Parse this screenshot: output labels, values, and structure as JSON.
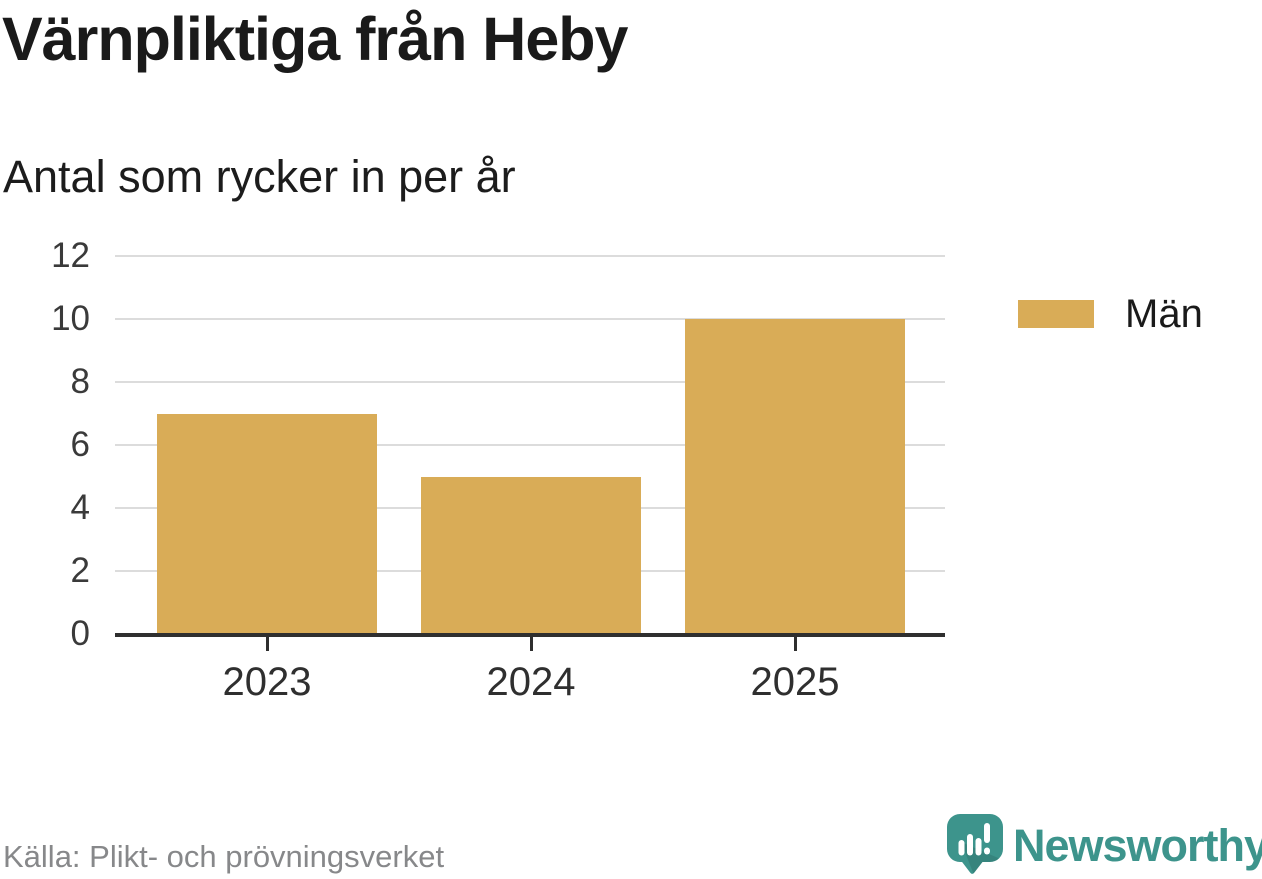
{
  "header": {
    "title": "Värnpliktiga från Heby",
    "subtitle": "Antal som rycker in per år"
  },
  "chart_data": {
    "type": "bar",
    "categories": [
      "2023",
      "2024",
      "2025"
    ],
    "series": [
      {
        "name": "Män",
        "values": [
          7,
          5,
          10
        ],
        "color": "#D9AC57"
      }
    ],
    "title": "Värnpliktiga från Heby",
    "subtitle": "Antal som rycker in per år",
    "xlabel": "",
    "ylabel": "",
    "ylim": [
      0,
      12
    ],
    "yticks": [
      0,
      2,
      4,
      6,
      8,
      10,
      12
    ],
    "grid": true,
    "legend_position": "right"
  },
  "legend": {
    "items": [
      {
        "label": "Män",
        "color": "#D9AC57"
      }
    ]
  },
  "footer": {
    "source": "Källa: Plikt- och prövningsverket",
    "brand": "Newsworthy"
  },
  "colors": {
    "bar": "#D9AC57",
    "axis": "#2f2f2f",
    "grid": "#dcdcdc",
    "title_text": "#1a1a1a",
    "tick_label": "#3a3a3a",
    "source_text": "#87888a",
    "brand_teal": "#3d948c"
  },
  "icons": {
    "brand_icon": "newsworthy-speech-bubble-bar-chart-icon"
  }
}
